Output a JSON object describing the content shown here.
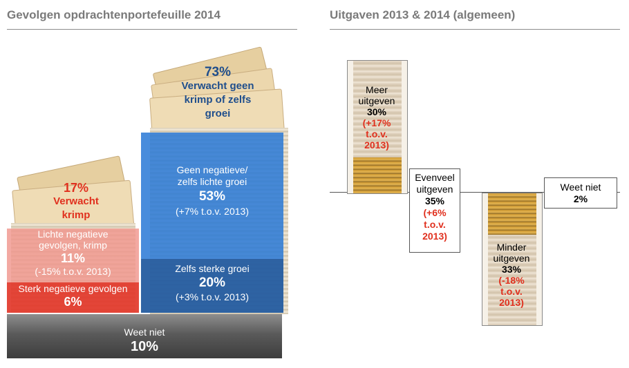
{
  "left": {
    "title": "Gevolgen opdrachtenportefeuille 2014",
    "summary_decline": {
      "pct": "17%",
      "line1": "Verwacht",
      "line2": "krimp"
    },
    "summary_growth": {
      "pct": "73%",
      "line1": "Verwacht geen",
      "line2": "krimp of zelfs",
      "line3": "groei"
    },
    "segments": [
      {
        "label_line1": "Lichte negatieve",
        "label_line2": "gevolgen, krimp",
        "pct": "11%",
        "change": "(-15% t.o.v. 2013)",
        "color": "#f0a09a"
      },
      {
        "label_line1": "Sterk negatieve gevolgen",
        "pct": "6%",
        "color": "#e23b2e"
      },
      {
        "label_line1": "Geen negatieve/",
        "label_line2": "zelfs lichte groei",
        "pct": "53%",
        "change": "(+7% t.o.v. 2013)",
        "color": "#2f7ed8"
      },
      {
        "label_line1": "Zelfs sterke groei",
        "pct": "20%",
        "change": "(+3% t.o.v. 2013)",
        "color": "#245fa6"
      },
      {
        "label_line1": "Weet niet",
        "pct": "10%",
        "color": "#555555"
      }
    ]
  },
  "right": {
    "title": "Uitgaven 2013 & 2014 (algemeen)",
    "items": [
      {
        "line1": "Meer",
        "line2": "uitgeven",
        "pct": "30%",
        "change1": "(+17%",
        "change2": "t.o.v.",
        "change3": "2013)"
      },
      {
        "line1": "Evenveel",
        "line2": "uitgeven",
        "pct": "35%",
        "change1": "(+6%",
        "change2": "t.o.v.",
        "change3": "2013)"
      },
      {
        "line1": "Minder",
        "line2": "uitgeven",
        "pct": "33%",
        "change1": "(-18%",
        "change2": "t.o.v.",
        "change3": "2013)"
      },
      {
        "line1": "Weet niet",
        "pct": "2%"
      }
    ]
  },
  "chart_data": [
    {
      "type": "bar",
      "title": "Gevolgen opdrachtenportefeuille 2014",
      "categories": [
        "Sterk negatieve gevolgen",
        "Lichte negatieve gevolgen, krimp",
        "Geen negatieve/ zelfs lichte groei",
        "Zelfs sterke groei",
        "Weet niet"
      ],
      "values": [
        6,
        11,
        53,
        20,
        10
      ],
      "changes_vs_2013": [
        null,
        -15,
        7,
        3,
        null
      ],
      "groups": [
        {
          "name": "Verwacht krimp",
          "value": 17
        },
        {
          "name": "Verwacht geen krimp of zelfs groei",
          "value": 73
        }
      ],
      "unit": "%"
    },
    {
      "type": "bar",
      "title": "Uitgaven 2013 & 2014 (algemeen)",
      "categories": [
        "Meer uitgeven",
        "Evenveel uitgeven",
        "Minder uitgeven",
        "Weet niet"
      ],
      "values": [
        30,
        35,
        33,
        2
      ],
      "changes_vs_2013": [
        17,
        6,
        -18,
        null
      ],
      "unit": "%"
    }
  ]
}
